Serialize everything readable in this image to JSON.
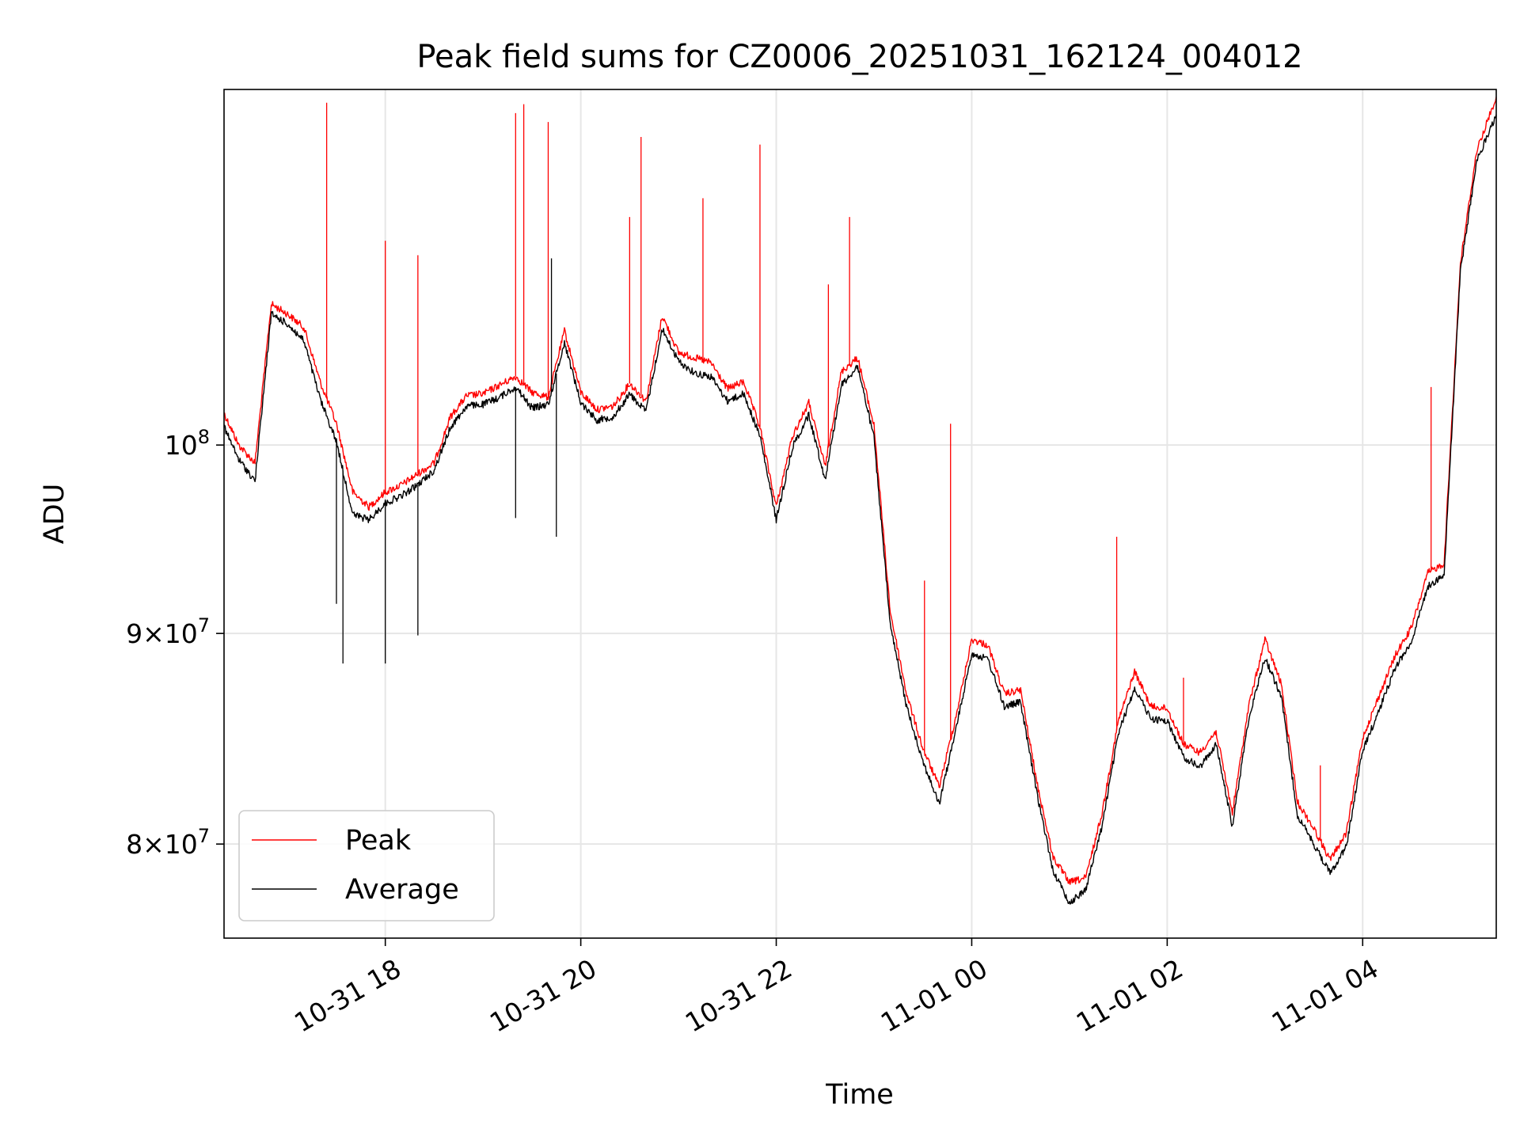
{
  "chart_data": {
    "type": "line",
    "title": "Peak field sums for CZ0006_20251031_162124_004012",
    "xlabel": "Time",
    "ylabel": "ADU",
    "x_range": [
      "2025-10-31 16:21",
      "2025-11-01 05:22"
    ],
    "ylim": [
      75900000,
      122000000
    ],
    "y_scale": "log",
    "grid": true,
    "legend_position": "lower-left",
    "x_ticks": [
      {
        "t": "2025-10-31 18:00",
        "label": "10-31 18"
      },
      {
        "t": "2025-10-31 20:00",
        "label": "10-31 20"
      },
      {
        "t": "2025-10-31 22:00",
        "label": "10-31 22"
      },
      {
        "t": "2025-11-01 00:00",
        "label": "11-01 00"
      },
      {
        "t": "2025-11-01 02:00",
        "label": "11-01 02"
      },
      {
        "t": "2025-11-01 04:00",
        "label": "11-01 04"
      }
    ],
    "y_ticks": [
      {
        "value": 80000000,
        "mantissa": "8",
        "base": "10",
        "exp": "7",
        "times": "×"
      },
      {
        "value": 90000000,
        "mantissa": "9",
        "base": "10",
        "exp": "7",
        "times": "×"
      },
      {
        "value": 100000000,
        "mantissa": "",
        "base": "10",
        "exp": "8",
        "times": ""
      }
    ],
    "series": [
      {
        "name": "Peak",
        "color": "#ff0000",
        "x": [
          "2025-10-31 16:21",
          "2025-10-31 16:30",
          "2025-10-31 16:40",
          "2025-10-31 16:50",
          "2025-10-31 17:00",
          "2025-10-31 17:10",
          "2025-10-31 17:20",
          "2025-10-31 17:30",
          "2025-10-31 17:40",
          "2025-10-31 17:50",
          "2025-10-31 18:00",
          "2025-10-31 18:10",
          "2025-10-31 18:20",
          "2025-10-31 18:30",
          "2025-10-31 18:40",
          "2025-10-31 18:50",
          "2025-10-31 19:00",
          "2025-10-31 19:10",
          "2025-10-31 19:20",
          "2025-10-31 19:30",
          "2025-10-31 19:40",
          "2025-10-31 19:50",
          "2025-10-31 20:00",
          "2025-10-31 20:10",
          "2025-10-31 20:20",
          "2025-10-31 20:30",
          "2025-10-31 20:40",
          "2025-10-31 20:50",
          "2025-10-31 21:00",
          "2025-10-31 21:10",
          "2025-10-31 21:20",
          "2025-10-31 21:30",
          "2025-10-31 21:40",
          "2025-10-31 21:50",
          "2025-10-31 22:00",
          "2025-10-31 22:10",
          "2025-10-31 22:20",
          "2025-10-31 22:30",
          "2025-10-31 22:40",
          "2025-10-31 22:50",
          "2025-10-31 23:00",
          "2025-10-31 23:10",
          "2025-10-31 23:20",
          "2025-10-31 23:30",
          "2025-10-31 23:40",
          "2025-10-31 23:50",
          "2025-11-01 00:00",
          "2025-11-01 00:10",
          "2025-11-01 00:20",
          "2025-11-01 00:30",
          "2025-11-01 00:40",
          "2025-11-01 00:50",
          "2025-11-01 01:00",
          "2025-11-01 01:10",
          "2025-11-01 01:20",
          "2025-11-01 01:30",
          "2025-11-01 01:40",
          "2025-11-01 01:50",
          "2025-11-01 02:00",
          "2025-11-01 02:10",
          "2025-11-01 02:20",
          "2025-11-01 02:30",
          "2025-11-01 02:40",
          "2025-11-01 02:50",
          "2025-11-01 03:00",
          "2025-11-01 03:10",
          "2025-11-01 03:20",
          "2025-11-01 03:30",
          "2025-11-01 03:40",
          "2025-11-01 03:50",
          "2025-11-01 04:00",
          "2025-11-01 04:10",
          "2025-11-01 04:20",
          "2025-11-01 04:30",
          "2025-11-01 04:40",
          "2025-11-01 04:50",
          "2025-11-01 05:00",
          "2025-11-01 05:10",
          "2025-11-01 05:22"
        ],
        "y": [
          101800000,
          100000000,
          99000000,
          108200000,
          107600000,
          106800000,
          103600000,
          101200000,
          97400000,
          96600000,
          97400000,
          97800000,
          98400000,
          99000000,
          101600000,
          102800000,
          102900000,
          103400000,
          103900000,
          103000000,
          102700000,
          106600000,
          103000000,
          102000000,
          102200000,
          103500000,
          102500000,
          107500000,
          105300000,
          105000000,
          104700000,
          103200000,
          103600000,
          101000000,
          96600000,
          100500000,
          102400000,
          98800000,
          104200000,
          105000000,
          101100000,
          91100000,
          87000000,
          84400000,
          82600000,
          85800000,
          89700000,
          89400000,
          87000000,
          87200000,
          82800000,
          79400000,
          78300000,
          78500000,
          81400000,
          85700000,
          88100000,
          86400000,
          86300000,
          84600000,
          84200000,
          85200000,
          81400000,
          86400000,
          89700000,
          87500000,
          81900000,
          80700000,
          79300000,
          80500000,
          84900000,
          86900000,
          88900000,
          90300000,
          93100000,
          93600000,
          110700000,
          117900000,
          121500000
        ],
        "spikes": [
          {
            "x": "2025-10-31 17:24",
            "y": 121100000
          },
          {
            "x": "2025-10-31 18:00",
            "y": 112100000
          },
          {
            "x": "2025-10-31 18:20",
            "y": 111200000
          },
          {
            "x": "2025-10-31 19:20",
            "y": 120400000
          },
          {
            "x": "2025-10-31 19:25",
            "y": 121000000
          },
          {
            "x": "2025-10-31 19:40",
            "y": 119800000
          },
          {
            "x": "2025-10-31 20:30",
            "y": 113600000
          },
          {
            "x": "2025-10-31 20:37",
            "y": 118800000
          },
          {
            "x": "2025-10-31 21:15",
            "y": 114800000
          },
          {
            "x": "2025-10-31 21:50",
            "y": 118300000
          },
          {
            "x": "2025-10-31 22:32",
            "y": 109400000
          },
          {
            "x": "2025-10-31 22:45",
            "y": 113600000
          },
          {
            "x": "2025-10-31 23:31",
            "y": 92700000
          },
          {
            "x": "2025-10-31 23:47",
            "y": 101200000
          },
          {
            "x": "2025-11-01 01:29",
            "y": 95000000
          },
          {
            "x": "2025-11-01 02:10",
            "y": 87800000
          },
          {
            "x": "2025-11-01 03:34",
            "y": 83600000
          },
          {
            "x": "2025-11-01 04:42",
            "y": 103300000
          }
        ]
      },
      {
        "name": "Average",
        "color": "#000000",
        "x": [
          "2025-10-31 16:21",
          "2025-10-31 16:30",
          "2025-10-31 16:40",
          "2025-10-31 16:50",
          "2025-10-31 17:00",
          "2025-10-31 17:10",
          "2025-10-31 17:20",
          "2025-10-31 17:30",
          "2025-10-31 17:40",
          "2025-10-31 17:50",
          "2025-10-31 18:00",
          "2025-10-31 18:10",
          "2025-10-31 18:20",
          "2025-10-31 18:30",
          "2025-10-31 18:40",
          "2025-10-31 18:50",
          "2025-10-31 19:00",
          "2025-10-31 19:10",
          "2025-10-31 19:20",
          "2025-10-31 19:30",
          "2025-10-31 19:40",
          "2025-10-31 19:50",
          "2025-10-31 20:00",
          "2025-10-31 20:10",
          "2025-10-31 20:20",
          "2025-10-31 20:30",
          "2025-10-31 20:40",
          "2025-10-31 20:50",
          "2025-10-31 21:00",
          "2025-10-31 21:10",
          "2025-10-31 21:20",
          "2025-10-31 21:30",
          "2025-10-31 21:40",
          "2025-10-31 21:50",
          "2025-10-31 22:00",
          "2025-10-31 22:10",
          "2025-10-31 22:20",
          "2025-10-31 22:30",
          "2025-10-31 22:40",
          "2025-10-31 22:50",
          "2025-10-31 23:00",
          "2025-10-31 23:10",
          "2025-10-31 23:20",
          "2025-10-31 23:30",
          "2025-10-31 23:40",
          "2025-10-31 23:50",
          "2025-11-01 00:00",
          "2025-11-01 00:10",
          "2025-11-01 00:20",
          "2025-11-01 00:30",
          "2025-11-01 00:40",
          "2025-11-01 00:50",
          "2025-11-01 01:00",
          "2025-11-01 01:10",
          "2025-11-01 01:20",
          "2025-11-01 01:30",
          "2025-11-01 01:40",
          "2025-11-01 01:50",
          "2025-11-01 02:00",
          "2025-11-01 02:10",
          "2025-11-01 02:20",
          "2025-11-01 02:30",
          "2025-11-01 02:40",
          "2025-11-01 02:50",
          "2025-11-01 03:00",
          "2025-11-01 03:10",
          "2025-11-01 03:20",
          "2025-11-01 03:30",
          "2025-11-01 03:40",
          "2025-11-01 03:50",
          "2025-11-01 04:00",
          "2025-11-01 04:10",
          "2025-11-01 04:20",
          "2025-11-01 04:30",
          "2025-11-01 04:40",
          "2025-11-01 04:50",
          "2025-11-01 05:00",
          "2025-11-01 05:10",
          "2025-11-01 05:22"
        ],
        "y": [
          101000000,
          99200000,
          98000000,
          107600000,
          107000000,
          106000000,
          102600000,
          100200000,
          96200000,
          95900000,
          96800000,
          97200000,
          97800000,
          98600000,
          101000000,
          102200000,
          102300000,
          102700000,
          103300000,
          102100000,
          102300000,
          105900000,
          102400000,
          101400000,
          101600000,
          102900000,
          101900000,
          106700000,
          104800000,
          104100000,
          103900000,
          102500000,
          102900000,
          100500000,
          95900000,
          99900000,
          101700000,
          98100000,
          103400000,
          104500000,
          100400000,
          90400000,
          86400000,
          83800000,
          81800000,
          85200000,
          89000000,
          88700000,
          86400000,
          86600000,
          82300000,
          78800000,
          77400000,
          78000000,
          80800000,
          85100000,
          87300000,
          85800000,
          85700000,
          84000000,
          83500000,
          84600000,
          80800000,
          85800000,
          88800000,
          86900000,
          81300000,
          80000000,
          78700000,
          79900000,
          84300000,
          86200000,
          88300000,
          89600000,
          92400000,
          93000000,
          110200000,
          117200000,
          120300000
        ],
        "spikes": [
          {
            "x": "2025-10-31 17:30",
            "y": 91500000
          },
          {
            "x": "2025-10-31 17:34",
            "y": 88500000
          },
          {
            "x": "2025-10-31 18:00",
            "y": 88500000
          },
          {
            "x": "2025-10-31 18:20",
            "y": 89900000
          },
          {
            "x": "2025-10-31 19:20",
            "y": 96000000
          },
          {
            "x": "2025-10-31 19:45",
            "y": 95000000
          },
          {
            "x": "2025-10-31 19:42",
            "y": 111000000
          }
        ]
      }
    ]
  }
}
